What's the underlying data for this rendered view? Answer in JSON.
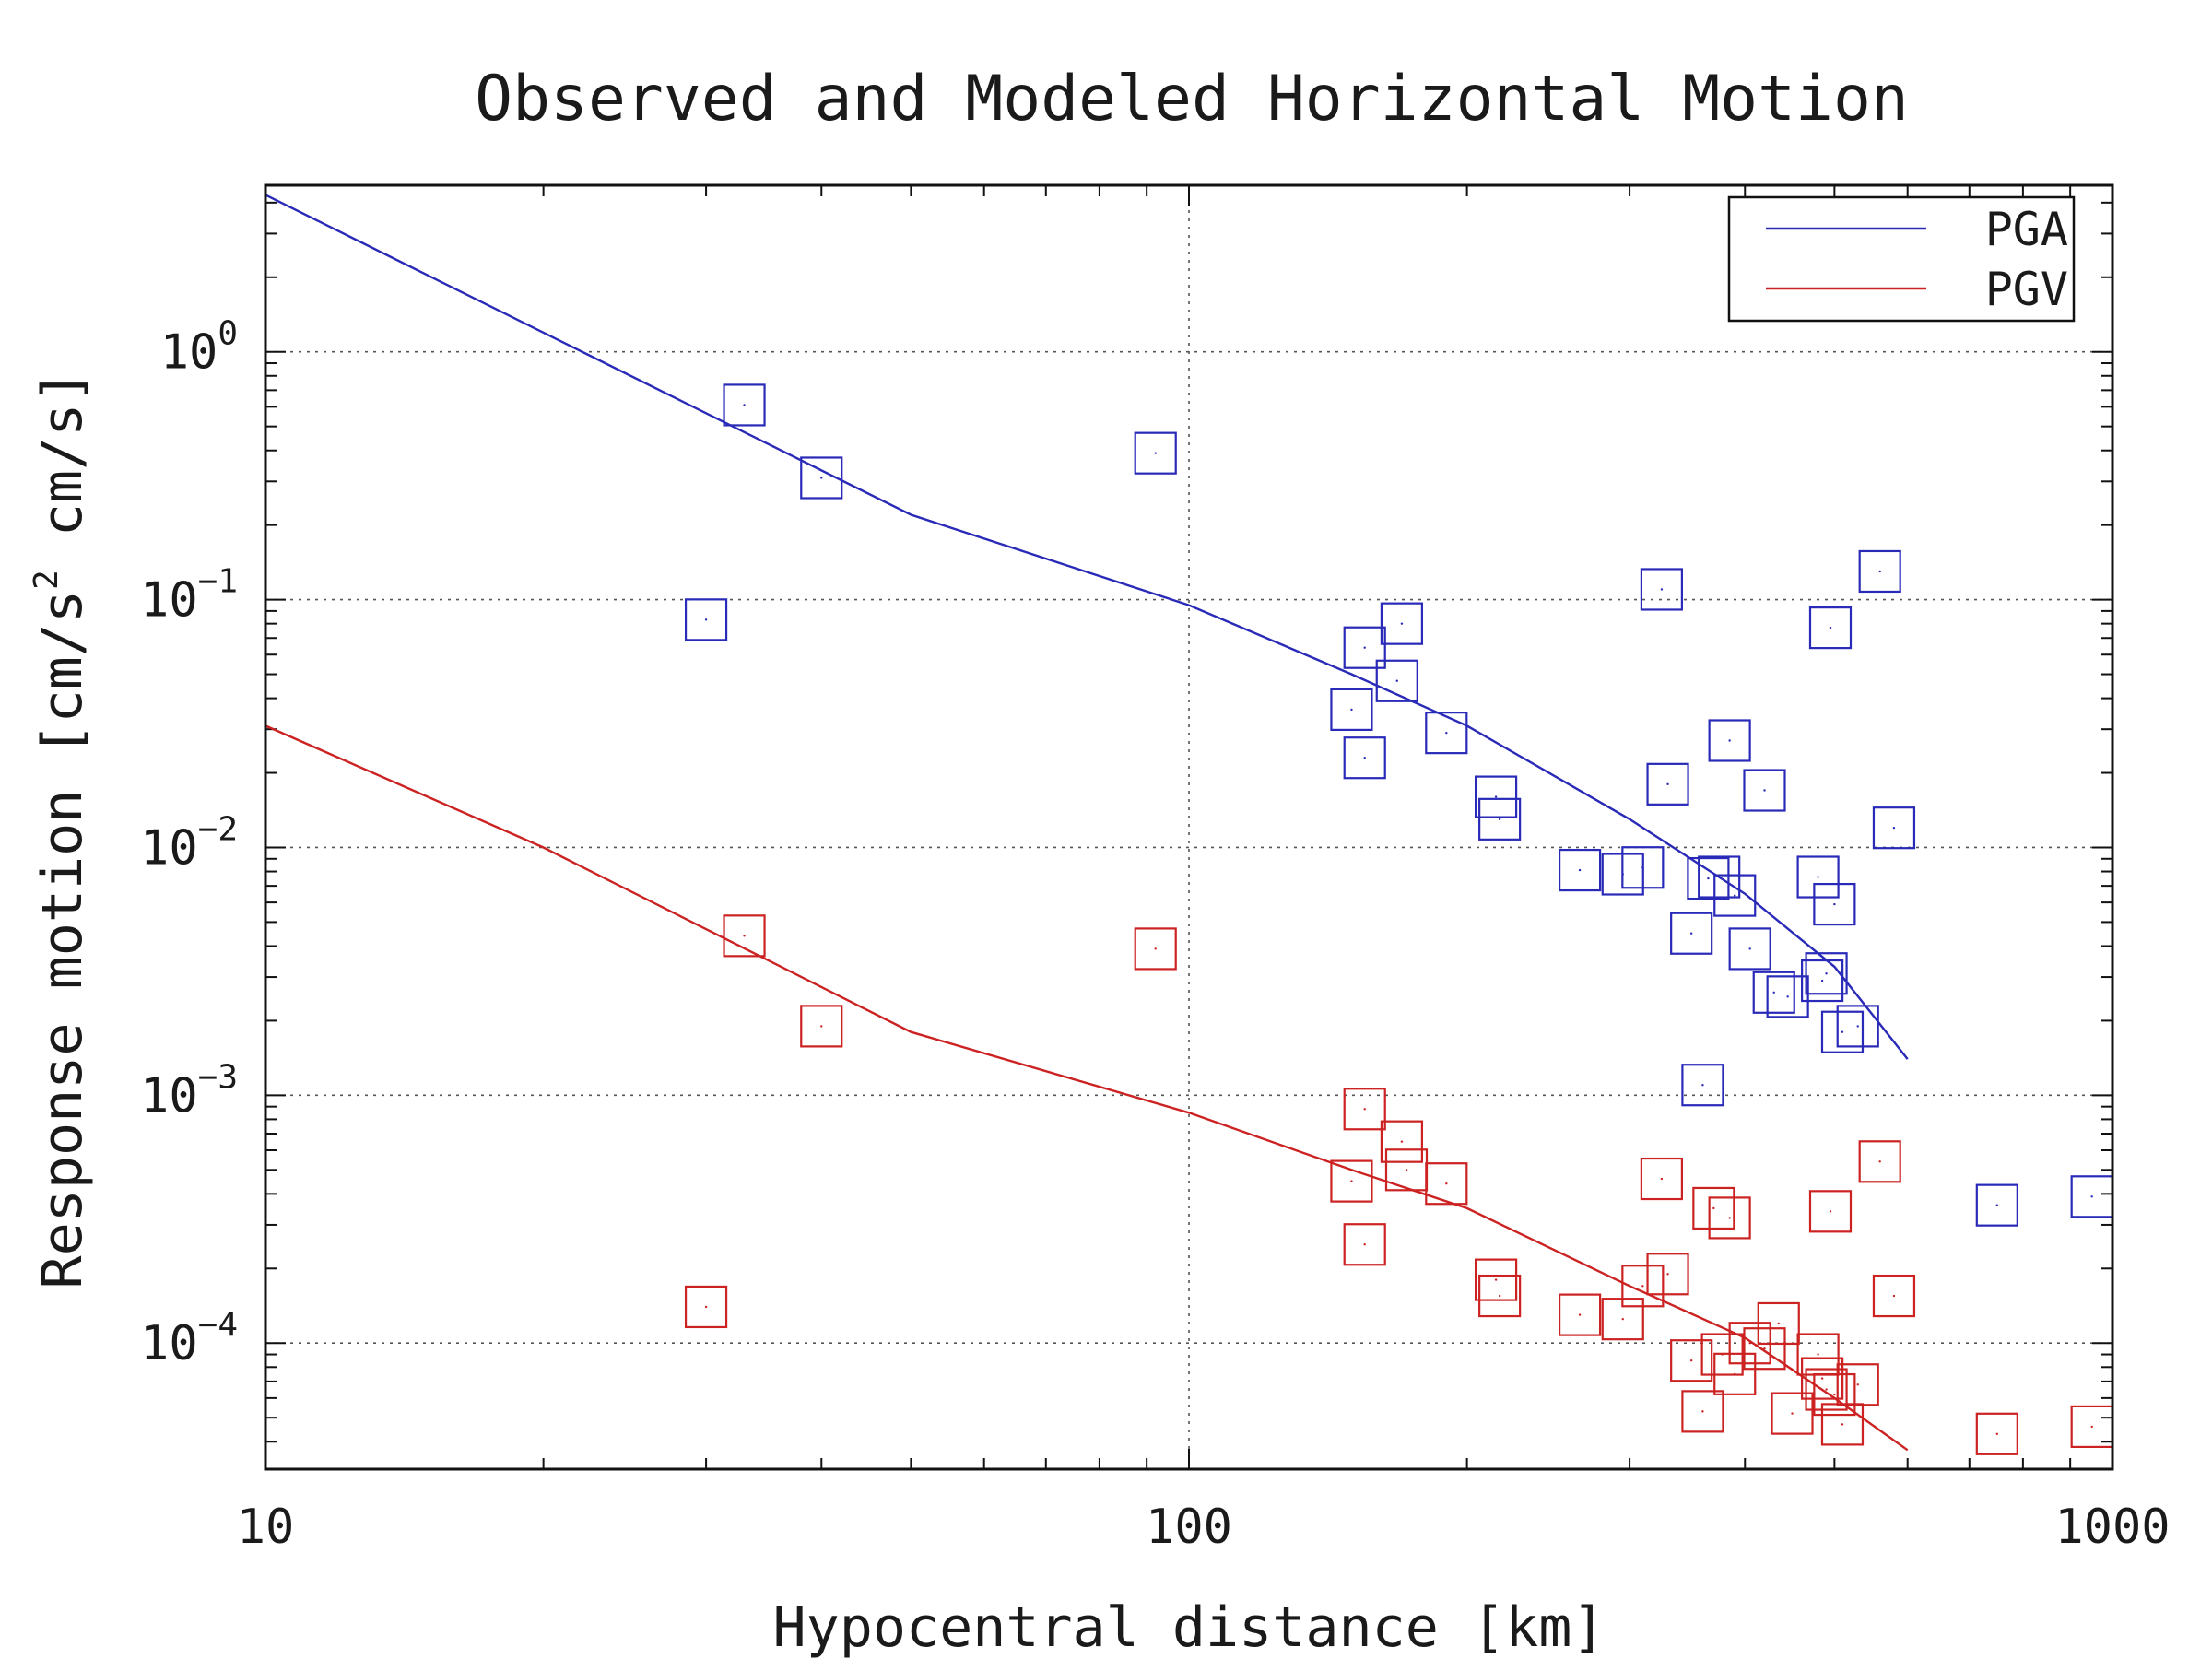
{
  "chart_data": {
    "type": "scatter",
    "title": "Observed and Modeled Horizontal Motion",
    "xlabel": "Hypocentral distance [km]",
    "ylabel": "Response motion [cm/s² cm/s]",
    "ylabel_parts": {
      "main": "Response motion  [cm/s",
      "sup": "2",
      "tail": "  cm/s]"
    },
    "x_scale": "log",
    "y_scale": "log",
    "xlim": [
      10,
      1000
    ],
    "ylim": [
      3.1e-05,
      4.7
    ],
    "x_ticks": [
      {
        "value": 10,
        "label": "10"
      },
      {
        "value": 100,
        "label": "100"
      },
      {
        "value": 1000,
        "label": "1000"
      }
    ],
    "y_ticks": [
      {
        "value": 1,
        "base": "10",
        "exp": "0"
      },
      {
        "value": 0.1,
        "base": "10",
        "exp": "−1"
      },
      {
        "value": 0.01,
        "base": "10",
        "exp": "−2"
      },
      {
        "value": 0.001,
        "base": "10",
        "exp": "−3"
      },
      {
        "value": 0.0001,
        "base": "10",
        "exp": "−4"
      }
    ],
    "grid": true,
    "legend": {
      "placement": "top-right"
    },
    "series": [
      {
        "name": "PGA",
        "color": "#2a2ab8",
        "model_line": [
          [
            10,
            4.3
          ],
          [
            50,
            0.22
          ],
          [
            100,
            0.095
          ],
          [
            150,
            0.05
          ],
          [
            200,
            0.031
          ],
          [
            300,
            0.013
          ],
          [
            400,
            0.0065
          ],
          [
            500,
            0.0033
          ],
          [
            600,
            0.0014
          ]
        ],
        "observed": [
          [
            30,
            0.083
          ],
          [
            33,
            0.61
          ],
          [
            40,
            0.31
          ],
          [
            92,
            0.39
          ],
          [
            150,
            0.036
          ],
          [
            155,
            0.064
          ],
          [
            155,
            0.023
          ],
          [
            170,
            0.08
          ],
          [
            168,
            0.047
          ],
          [
            190,
            0.029
          ],
          [
            215,
            0.016
          ],
          [
            217,
            0.013
          ],
          [
            265,
            0.0081
          ],
          [
            295,
            0.0078
          ],
          [
            310,
            0.0083
          ],
          [
            325,
            0.11
          ],
          [
            330,
            0.018
          ],
          [
            350,
            0.0045
          ],
          [
            360,
            0.0011
          ],
          [
            365,
            0.0075
          ],
          [
            375,
            0.0076
          ],
          [
            385,
            0.027
          ],
          [
            390,
            0.0064
          ],
          [
            405,
            0.0039
          ],
          [
            420,
            0.017
          ],
          [
            430,
            0.0026
          ],
          [
            445,
            0.0025
          ],
          [
            480,
            0.0076
          ],
          [
            485,
            0.0029
          ],
          [
            490,
            0.0031
          ],
          [
            495,
            0.077
          ],
          [
            500,
            0.0059
          ],
          [
            510,
            0.0018
          ],
          [
            530,
            0.0019
          ],
          [
            560,
            0.13
          ],
          [
            580,
            0.012
          ],
          [
            750,
            0.00036
          ],
          [
            950,
            0.00039
          ]
        ]
      },
      {
        "name": "PGV",
        "color": "#cc2222",
        "model_line": [
          [
            10,
            0.031
          ],
          [
            20,
            0.01
          ],
          [
            50,
            0.0018
          ],
          [
            100,
            0.00085
          ],
          [
            150,
            0.0005
          ],
          [
            200,
            0.00035
          ],
          [
            300,
            0.00017
          ],
          [
            400,
            0.000105
          ],
          [
            500,
            6e-05
          ],
          [
            600,
            3.7e-05
          ]
        ],
        "observed": [
          [
            30,
            0.00014
          ],
          [
            33,
            0.0044
          ],
          [
            40,
            0.0019
          ],
          [
            92,
            0.0039
          ],
          [
            150,
            0.00045
          ],
          [
            155,
            0.00088
          ],
          [
            155,
            0.00025
          ],
          [
            170,
            0.00065
          ],
          [
            172,
            0.0005
          ],
          [
            190,
            0.00044
          ],
          [
            215,
            0.00018
          ],
          [
            217,
            0.000155
          ],
          [
            265,
            0.00013
          ],
          [
            295,
            0.000125
          ],
          [
            310,
            0.00017
          ],
          [
            325,
            0.00046
          ],
          [
            330,
            0.00019
          ],
          [
            350,
            8.5e-05
          ],
          [
            360,
            5.3e-05
          ],
          [
            370,
            0.00035
          ],
          [
            378,
            9e-05
          ],
          [
            385,
            0.00032
          ],
          [
            390,
            7.5e-05
          ],
          [
            405,
            0.0001
          ],
          [
            420,
            9.5e-05
          ],
          [
            435,
            0.00012
          ],
          [
            450,
            5.2e-05
          ],
          [
            480,
            9e-05
          ],
          [
            485,
            7.2e-05
          ],
          [
            490,
            6.5e-05
          ],
          [
            495,
            0.00034
          ],
          [
            500,
            6.2e-05
          ],
          [
            510,
            4.7e-05
          ],
          [
            530,
            6.8e-05
          ],
          [
            560,
            0.00054
          ],
          [
            580,
            0.000155
          ],
          [
            750,
            4.3e-05
          ],
          [
            950,
            4.6e-05
          ]
        ]
      }
    ]
  }
}
